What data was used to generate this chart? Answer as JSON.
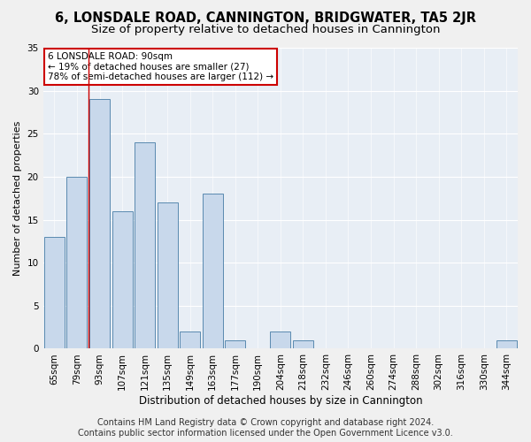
{
  "title": "6, LONSDALE ROAD, CANNINGTON, BRIDGWATER, TA5 2JR",
  "subtitle": "Size of property relative to detached houses in Cannington",
  "xlabel": "Distribution of detached houses by size in Cannington",
  "ylabel": "Number of detached properties",
  "categories": [
    "65sqm",
    "79sqm",
    "93sqm",
    "107sqm",
    "121sqm",
    "135sqm",
    "149sqm",
    "163sqm",
    "177sqm",
    "190sqm",
    "204sqm",
    "218sqm",
    "232sqm",
    "246sqm",
    "260sqm",
    "274sqm",
    "288sqm",
    "302sqm",
    "316sqm",
    "330sqm",
    "344sqm"
  ],
  "values": [
    13,
    20,
    29,
    16,
    24,
    17,
    2,
    18,
    1,
    0,
    2,
    1,
    0,
    0,
    0,
    0,
    0,
    0,
    0,
    0,
    1
  ],
  "bar_color": "#c8d8eb",
  "bar_edge_color": "#5a8ab0",
  "highlight_index": 2,
  "highlight_line_color": "#cc0000",
  "ylim": [
    0,
    35
  ],
  "yticks": [
    0,
    5,
    10,
    15,
    20,
    25,
    30,
    35
  ],
  "plot_bg_color": "#e8eef5",
  "fig_bg_color": "#f0f0f0",
  "annotation_text": "6 LONSDALE ROAD: 90sqm\n← 19% of detached houses are smaller (27)\n78% of semi-detached houses are larger (112) →",
  "annotation_box_color": "#ffffff",
  "annotation_border_color": "#cc0000",
  "footer_line1": "Contains HM Land Registry data © Crown copyright and database right 2024.",
  "footer_line2": "Contains public sector information licensed under the Open Government Licence v3.0.",
  "title_fontsize": 10.5,
  "subtitle_fontsize": 9.5,
  "xlabel_fontsize": 8.5,
  "ylabel_fontsize": 8,
  "tick_fontsize": 7.5,
  "annotation_fontsize": 7.5,
  "footer_fontsize": 7
}
